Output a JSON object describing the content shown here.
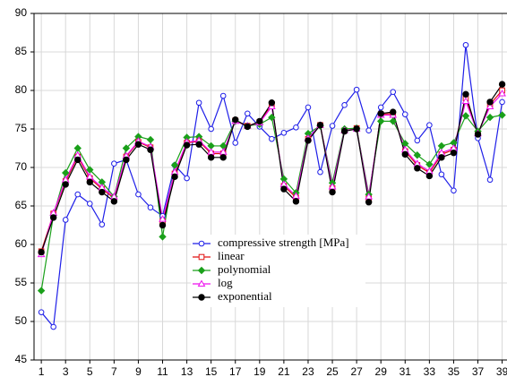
{
  "chart_data": {
    "type": "line",
    "x": [
      1,
      2,
      3,
      4,
      5,
      6,
      7,
      8,
      9,
      10,
      11,
      12,
      13,
      14,
      15,
      16,
      17,
      18,
      19,
      20,
      21,
      22,
      23,
      24,
      25,
      26,
      27,
      28,
      29,
      30,
      31,
      32,
      33,
      34,
      35,
      36,
      37,
      38,
      39
    ],
    "xlim": [
      0.4,
      39.4
    ],
    "xticks": [
      1,
      3,
      5,
      7,
      9,
      11,
      13,
      15,
      17,
      19,
      21,
      23,
      25,
      27,
      29,
      31,
      33,
      35,
      37,
      39
    ],
    "ylim": [
      45,
      90
    ],
    "yticks": [
      45,
      50,
      55,
      60,
      65,
      70,
      75,
      80,
      85,
      90
    ],
    "grid": true,
    "legend": "center",
    "series": [
      {
        "name": "compressive strength [MPa]",
        "color": "#1f1fe8",
        "marker": "circle-open",
        "values": [
          51.2,
          49.3,
          63.2,
          66.5,
          65.3,
          62.6,
          70.5,
          71.0,
          66.5,
          64.8,
          63.7,
          70.3,
          68.6,
          78.4,
          75.0,
          79.3,
          73.2,
          77.0,
          75.3,
          73.7,
          74.5,
          75.2,
          77.8,
          69.4,
          75.4,
          78.1,
          80.1,
          74.8,
          77.8,
          79.8,
          76.9,
          73.5,
          75.5,
          69.1,
          67.0,
          85.9,
          73.8,
          68.4,
          78.5
        ]
      },
      {
        "name": "linear",
        "color": "#e01010",
        "marker": "square-open",
        "values": [
          59.1,
          64.0,
          68.2,
          71.4,
          68.6,
          67.2,
          66.0,
          71.4,
          73.3,
          72.6,
          63.0,
          69.2,
          73.2,
          73.4,
          71.8,
          71.8,
          76.1,
          75.4,
          75.9,
          78.2,
          67.6,
          66.1,
          73.7,
          75.5,
          67.3,
          74.8,
          75.1,
          66.0,
          76.9,
          77.0,
          72.1,
          70.3,
          69.3,
          71.7,
          72.3,
          79.0,
          74.4,
          78.2,
          80.0
        ]
      },
      {
        "name": "polynomial",
        "color": "#1aa01a",
        "marker": "diamond",
        "values": [
          54.0,
          63.8,
          69.3,
          72.5,
          69.7,
          68.1,
          66.2,
          72.5,
          74.0,
          73.6,
          61.0,
          70.3,
          73.9,
          74.0,
          72.8,
          72.8,
          76.0,
          75.4,
          75.6,
          76.5,
          68.5,
          66.7,
          74.4,
          75.4,
          68.0,
          75.0,
          75.1,
          66.5,
          76.0,
          76.0,
          73.1,
          71.6,
          70.4,
          72.8,
          73.2,
          76.7,
          74.7,
          76.5,
          76.8
        ]
      },
      {
        "name": "log",
        "color": "#ee10ee",
        "marker": "triangle-open",
        "values": [
          58.7,
          64.1,
          68.4,
          71.6,
          68.8,
          67.4,
          66.2,
          71.5,
          73.4,
          72.7,
          63.3,
          69.4,
          73.3,
          73.5,
          72.0,
          72.0,
          76.0,
          75.4,
          75.8,
          77.9,
          67.8,
          66.3,
          73.8,
          75.5,
          67.5,
          74.8,
          75.0,
          66.2,
          76.8,
          76.8,
          72.3,
          70.5,
          69.5,
          71.9,
          72.5,
          78.6,
          74.4,
          77.9,
          79.6
        ]
      },
      {
        "name": "exponential",
        "color": "#000000",
        "marker": "circle-filled",
        "values": [
          59.0,
          63.5,
          67.8,
          71.0,
          68.1,
          66.8,
          65.6,
          71.0,
          73.0,
          72.3,
          62.5,
          68.8,
          72.9,
          73.0,
          71.3,
          71.3,
          76.2,
          75.3,
          76.0,
          78.4,
          67.2,
          65.6,
          73.5,
          75.5,
          66.8,
          74.7,
          75.0,
          65.5,
          77.0,
          77.2,
          71.7,
          69.9,
          68.9,
          71.3,
          71.9,
          79.5,
          74.3,
          78.5,
          80.8
        ]
      }
    ]
  }
}
